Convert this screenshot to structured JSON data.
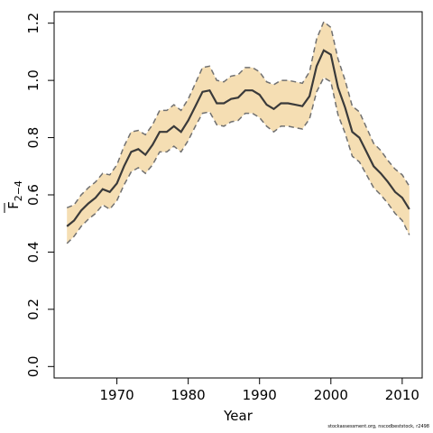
{
  "chart_data": {
    "type": "line",
    "xlabel": "Year",
    "ylabel": "F̅ 2−4",
    "ylabel_main": "F",
    "ylabel_sub": "2−4",
    "xlim": [
      1961.2,
      2012.8
    ],
    "ylim": [
      -0.04,
      1.24
    ],
    "x_ticks": [
      1970,
      1980,
      1990,
      2000,
      2010
    ],
    "y_ticks": [
      0.0,
      0.2,
      0.4,
      0.6,
      0.8,
      1.0,
      1.2
    ],
    "x_tick_labels": [
      "1970",
      "1980",
      "1990",
      "2000",
      "2010"
    ],
    "y_tick_labels": [
      "0.0",
      "0.2",
      "0.4",
      "0.6",
      "0.8",
      "1.0",
      "1.2"
    ],
    "colors": {
      "band": "#f5deb3",
      "line": "#3a3a3a",
      "bound": "#707070"
    },
    "x": [
      1963,
      1964,
      1965,
      1966,
      1967,
      1968,
      1969,
      1970,
      1971,
      1972,
      1973,
      1974,
      1975,
      1976,
      1977,
      1978,
      1979,
      1980,
      1981,
      1982,
      1983,
      1984,
      1985,
      1986,
      1987,
      1988,
      1989,
      1990,
      1991,
      1992,
      1993,
      1994,
      1995,
      1996,
      1997,
      1998,
      1999,
      2000,
      2001,
      2002,
      2003,
      2004,
      2005,
      2006,
      2007,
      2008,
      2009,
      2010,
      2011
    ],
    "series": [
      {
        "role": "estimate",
        "values": [
          0.49,
          0.51,
          0.545,
          0.57,
          0.59,
          0.62,
          0.61,
          0.64,
          0.7,
          0.75,
          0.76,
          0.74,
          0.775,
          0.82,
          0.82,
          0.84,
          0.82,
          0.86,
          0.91,
          0.96,
          0.965,
          0.92,
          0.92,
          0.935,
          0.94,
          0.965,
          0.965,
          0.95,
          0.915,
          0.9,
          0.92,
          0.92,
          0.915,
          0.91,
          0.945,
          1.05,
          1.105,
          1.09,
          0.975,
          0.905,
          0.82,
          0.8,
          0.75,
          0.7,
          0.675,
          0.645,
          0.61,
          0.59,
          0.55
        ]
      },
      {
        "role": "upper",
        "values": [
          0.555,
          0.565,
          0.6,
          0.625,
          0.645,
          0.675,
          0.67,
          0.705,
          0.77,
          0.82,
          0.825,
          0.81,
          0.845,
          0.895,
          0.895,
          0.915,
          0.895,
          0.935,
          0.99,
          1.045,
          1.05,
          1.0,
          0.995,
          1.015,
          1.02,
          1.045,
          1.045,
          1.03,
          0.995,
          0.985,
          1.0,
          1.0,
          0.995,
          0.99,
          1.03,
          1.145,
          1.205,
          1.185,
          1.075,
          1.0,
          0.91,
          0.89,
          0.835,
          0.78,
          0.755,
          0.72,
          0.69,
          0.67,
          0.63
        ]
      },
      {
        "role": "lower",
        "values": [
          0.43,
          0.455,
          0.49,
          0.515,
          0.535,
          0.565,
          0.55,
          0.58,
          0.635,
          0.68,
          0.695,
          0.675,
          0.705,
          0.75,
          0.75,
          0.77,
          0.75,
          0.79,
          0.84,
          0.885,
          0.89,
          0.845,
          0.84,
          0.855,
          0.86,
          0.885,
          0.885,
          0.87,
          0.84,
          0.82,
          0.84,
          0.84,
          0.835,
          0.83,
          0.865,
          0.96,
          1.01,
          0.995,
          0.88,
          0.815,
          0.735,
          0.715,
          0.67,
          0.625,
          0.6,
          0.57,
          0.535,
          0.51,
          0.46
        ]
      }
    ]
  },
  "footer": "stockassessment.org, nscodbeststock, r2498"
}
